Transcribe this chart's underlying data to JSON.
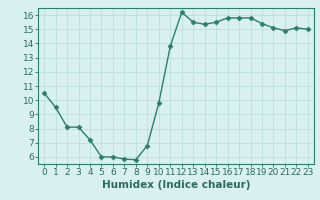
{
  "x": [
    0,
    1,
    2,
    3,
    4,
    5,
    6,
    7,
    8,
    9,
    10,
    11,
    12,
    13,
    14,
    15,
    16,
    17,
    18,
    19,
    20,
    21,
    22,
    23
  ],
  "y": [
    10.5,
    9.5,
    8.1,
    8.1,
    7.2,
    6.0,
    6.0,
    5.85,
    5.8,
    6.8,
    9.8,
    13.8,
    16.2,
    15.5,
    15.35,
    15.5,
    15.8,
    15.8,
    15.8,
    15.4,
    15.1,
    14.9,
    15.1,
    15.0
  ],
  "line_color": "#2d7d6e",
  "marker": "D",
  "marker_size": 2.5,
  "background_color": "#d8f0ef",
  "grid_color": "#b8dbd8",
  "xlabel": "Humidex (Indice chaleur)",
  "xlim": [
    -0.5,
    23.5
  ],
  "ylim": [
    5.5,
    16.5
  ],
  "yticks": [
    6,
    7,
    8,
    9,
    10,
    11,
    12,
    13,
    14,
    15,
    16
  ],
  "xticks": [
    0,
    1,
    2,
    3,
    4,
    5,
    6,
    7,
    8,
    9,
    10,
    11,
    12,
    13,
    14,
    15,
    16,
    17,
    18,
    19,
    20,
    21,
    22,
    23
  ],
  "tick_color": "#2d6b60",
  "label_fontsize": 6.5,
  "axis_label_fontsize": 7.5,
  "spine_color": "#2d7d6e",
  "linewidth": 1.0
}
